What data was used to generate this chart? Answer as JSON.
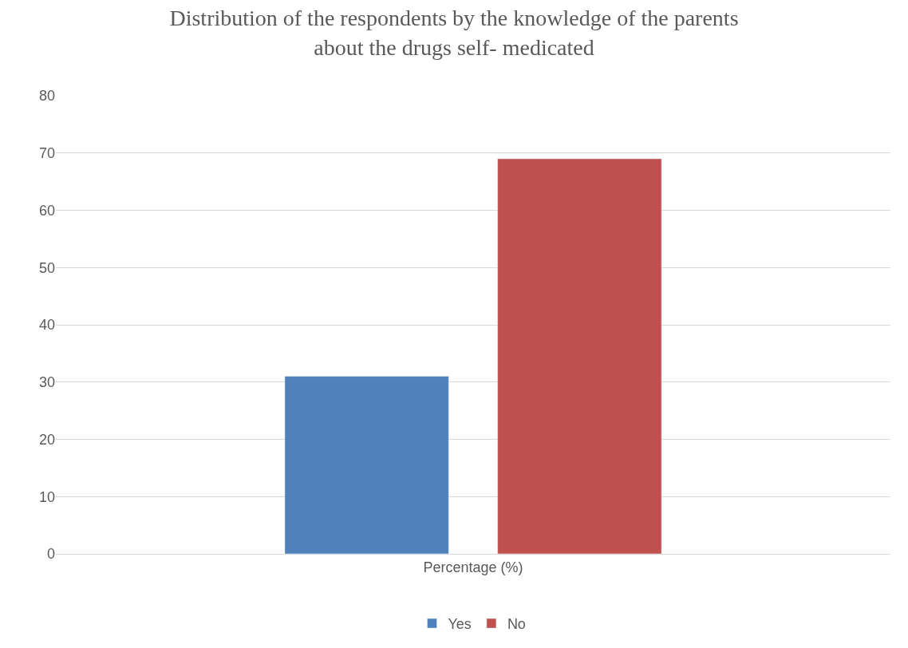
{
  "chart_data": {
    "type": "bar",
    "title": "Distribution of the respondents by the knowledge of the parents\nabout the drugs self- medicated",
    "categories": [
      "Percentage (%)"
    ],
    "series": [
      {
        "name": "Yes",
        "color": "#4f81bd",
        "values": [
          31
        ]
      },
      {
        "name": "No",
        "color": "#c0504d",
        "values": [
          69
        ]
      }
    ],
    "ylim": [
      0,
      80
    ],
    "yticks": [
      0,
      10,
      20,
      30,
      40,
      50,
      60,
      70,
      80
    ],
    "grid": "y",
    "legend": "bottom"
  }
}
